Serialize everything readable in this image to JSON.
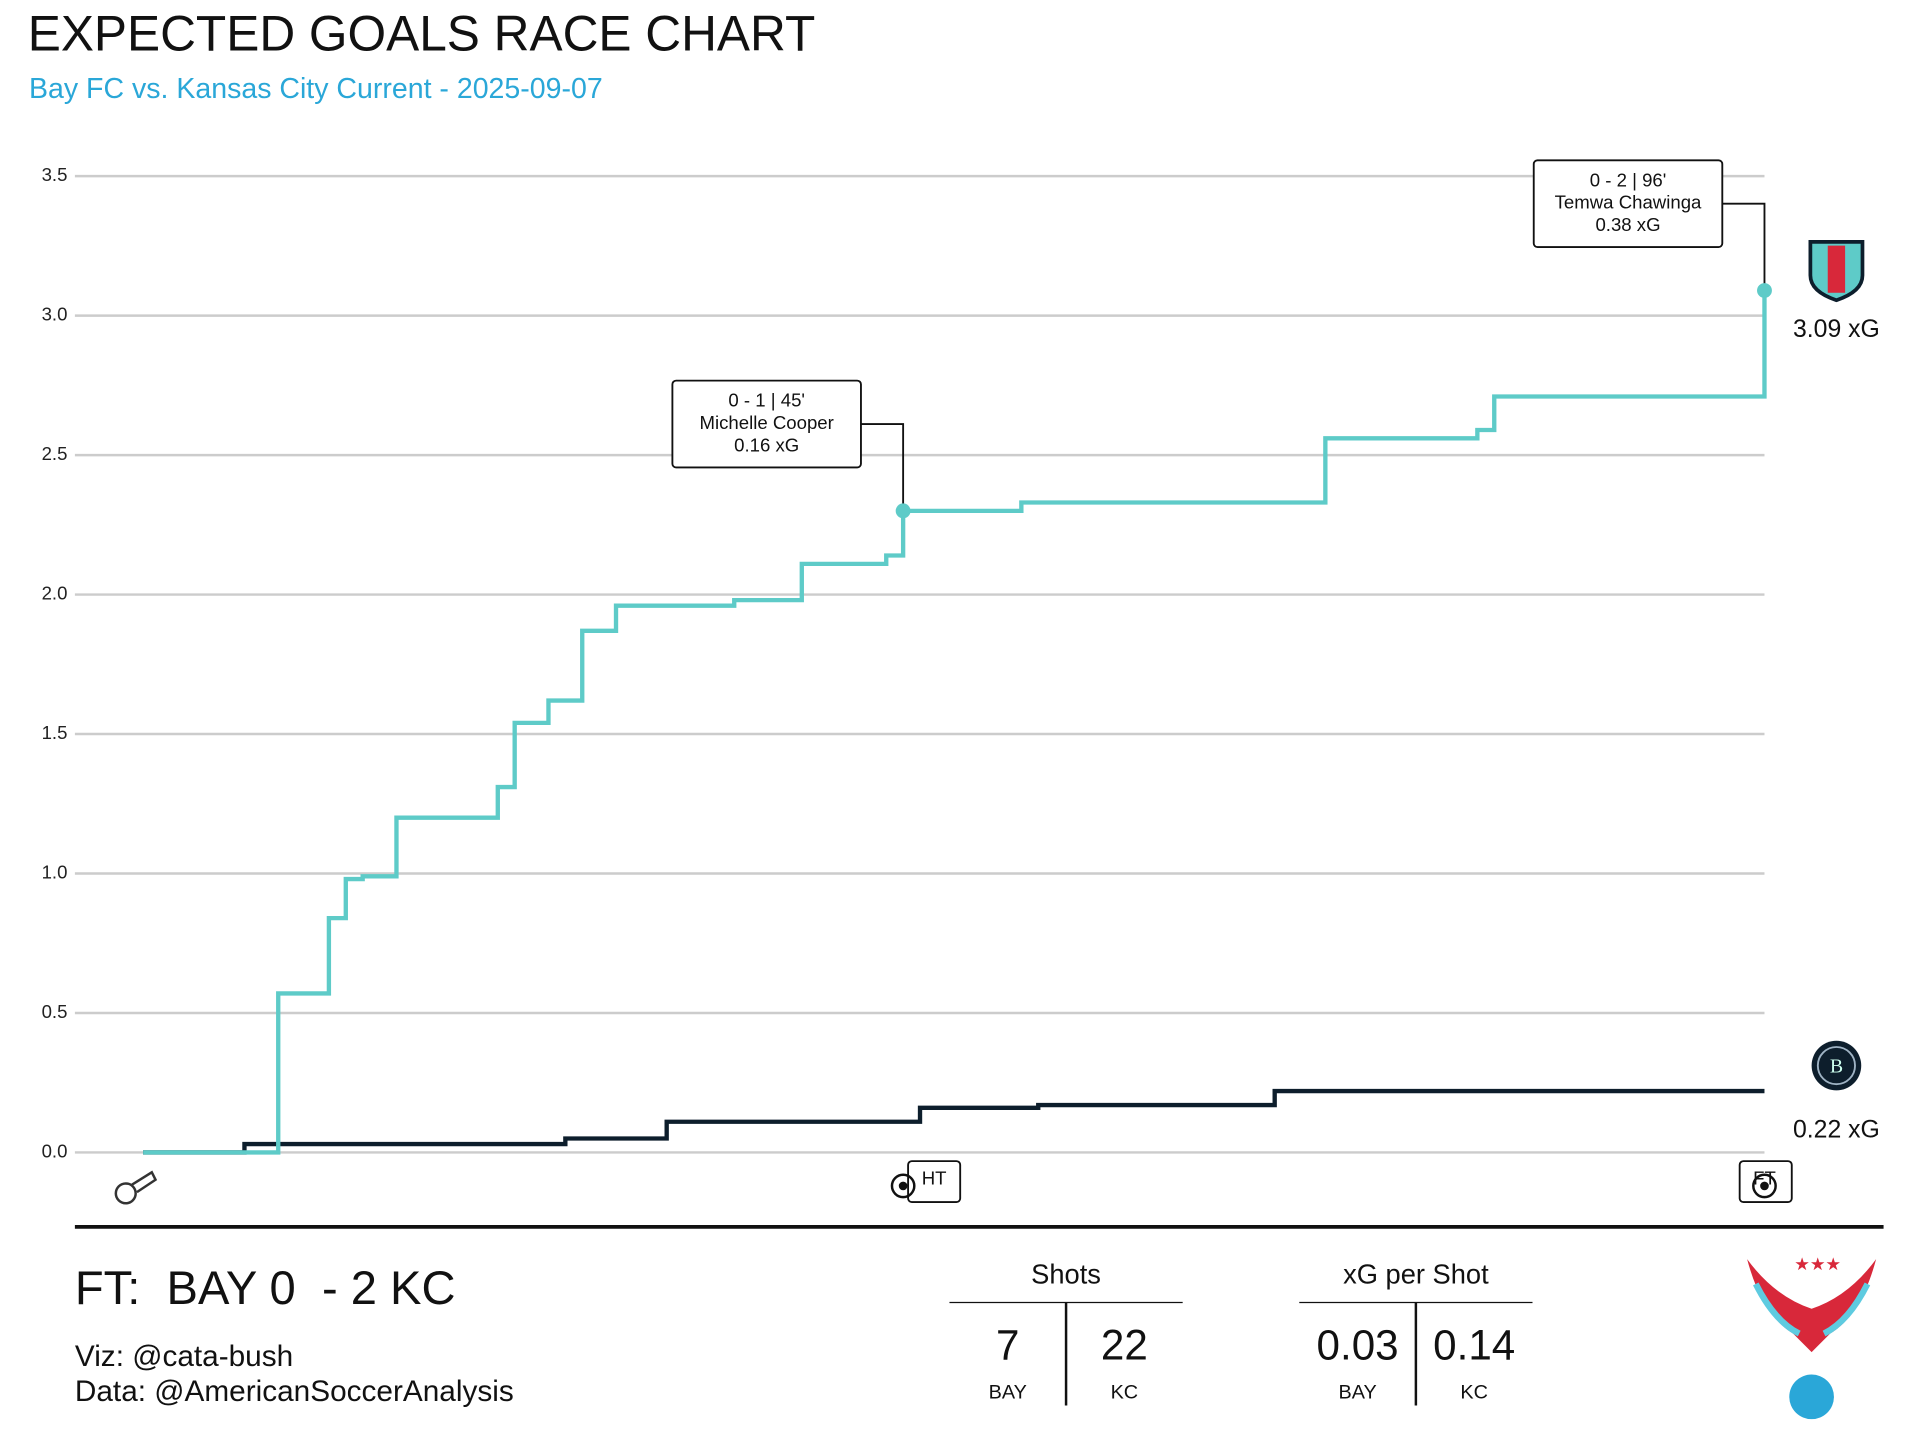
{
  "chart_data": {
    "type": "step",
    "title": "EXPECTED GOALS RACE CHART",
    "subtitle": "Bay FC vs. Kansas City Current - 2025-09-07",
    "xlim": [
      0,
      96
    ],
    "ylim": [
      0,
      3.5
    ],
    "yticks": [
      {
        "value": 0,
        "label": "0.0"
      },
      0.5,
      {
        "value": 1,
        "label": "1.0"
      },
      1.5,
      {
        "value": 2,
        "label": "2.0"
      },
      2.5,
      {
        "value": 3,
        "label": "3.0"
      },
      3.5
    ],
    "grid": true,
    "series": [
      {
        "color": "#5ecbc8",
        "end_label": "3.09 xG",
        "x": [
          0,
          8,
          11,
          12,
          13,
          15,
          21,
          22,
          24,
          26,
          28,
          35,
          39,
          44,
          45,
          52,
          70,
          79,
          80,
          96
        ],
        "values": [
          0,
          0.57,
          0.84,
          0.98,
          0.99,
          1.2,
          1.31,
          1.54,
          1.62,
          1.87,
          1.96,
          1.98,
          2.11,
          2.14,
          2.3,
          2.33,
          2.56,
          2.59,
          2.71,
          3.09
        ]
      },
      {
        "color": "#0d1e2c",
        "end_label": "0.22 xG",
        "x": [
          0,
          6,
          25,
          31,
          46,
          53,
          67,
          96
        ],
        "values": [
          0,
          0.03,
          0.05,
          0.11,
          0.16,
          0.17,
          0.22,
          0.22
        ]
      }
    ],
    "annotations": [
      {
        "x": 45,
        "lines": [
          "0 - 1  |  45'",
          "Michelle Cooper",
          "0.16 xG"
        ]
      },
      {
        "x": 96,
        "lines": [
          "0 - 2  |  96'",
          "Temwa Chawinga",
          "0.38 xG"
        ]
      }
    ],
    "period_markers": [
      {
        "x": 45,
        "label": "HT"
      },
      {
        "x": 96,
        "label": "FT"
      }
    ]
  },
  "footer": {
    "result": "FT:  BAY 0  - 2 KC",
    "credits": [
      "Viz: @cata-bush",
      "Data: @AmericanSoccerAnalysis"
    ],
    "stats": [
      {
        "title": "Shots",
        "values": [
          7,
          22
        ],
        "teams": [
          "BAY",
          "KC"
        ]
      },
      {
        "title": "xG per Shot",
        "values": [
          0.03,
          0.14
        ],
        "teams": [
          "BAY",
          "KC"
        ]
      }
    ]
  }
}
